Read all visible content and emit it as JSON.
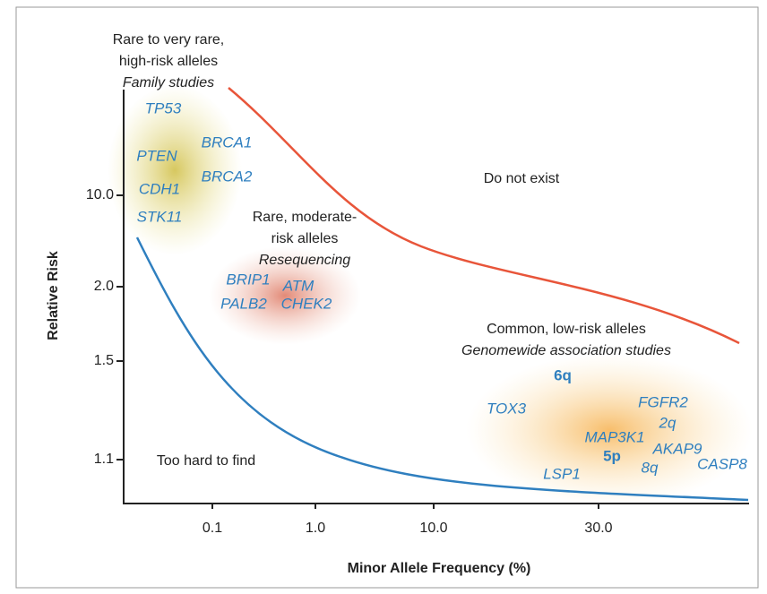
{
  "axes": {
    "x_title": "Minor Allele Frequency (%)",
    "y_title": "Relative Risk",
    "x_ticks": [
      "0.1",
      "1.0",
      "10.0",
      "30.0"
    ],
    "y_ticks": [
      "10.0",
      "2.0",
      "1.5",
      "1.1"
    ]
  },
  "regions": [
    {
      "lines": [
        "Rare to very rare,",
        "high-risk alleles"
      ],
      "method": "Family studies"
    },
    {
      "lines": [
        "Rare, moderate-",
        "risk alleles"
      ],
      "method": "Resequencing"
    },
    {
      "lines": [
        "Common, low-risk alleles"
      ],
      "method": "Genomewide association studies"
    },
    {
      "lines": [
        "Do not exist"
      ]
    },
    {
      "lines": [
        "Too hard to find"
      ]
    }
  ],
  "genes": [
    "TP53",
    "PTEN",
    "BRCA1",
    "CDH1",
    "BRCA2",
    "STK11",
    "BRIP1",
    "ATM",
    "PALB2",
    "CHEK2",
    "6q",
    "TOX3",
    "FGFR2",
    "2q",
    "MAP3K1",
    "AKAP9",
    "5p",
    "8q",
    "CASP8",
    "LSP1"
  ]
}
